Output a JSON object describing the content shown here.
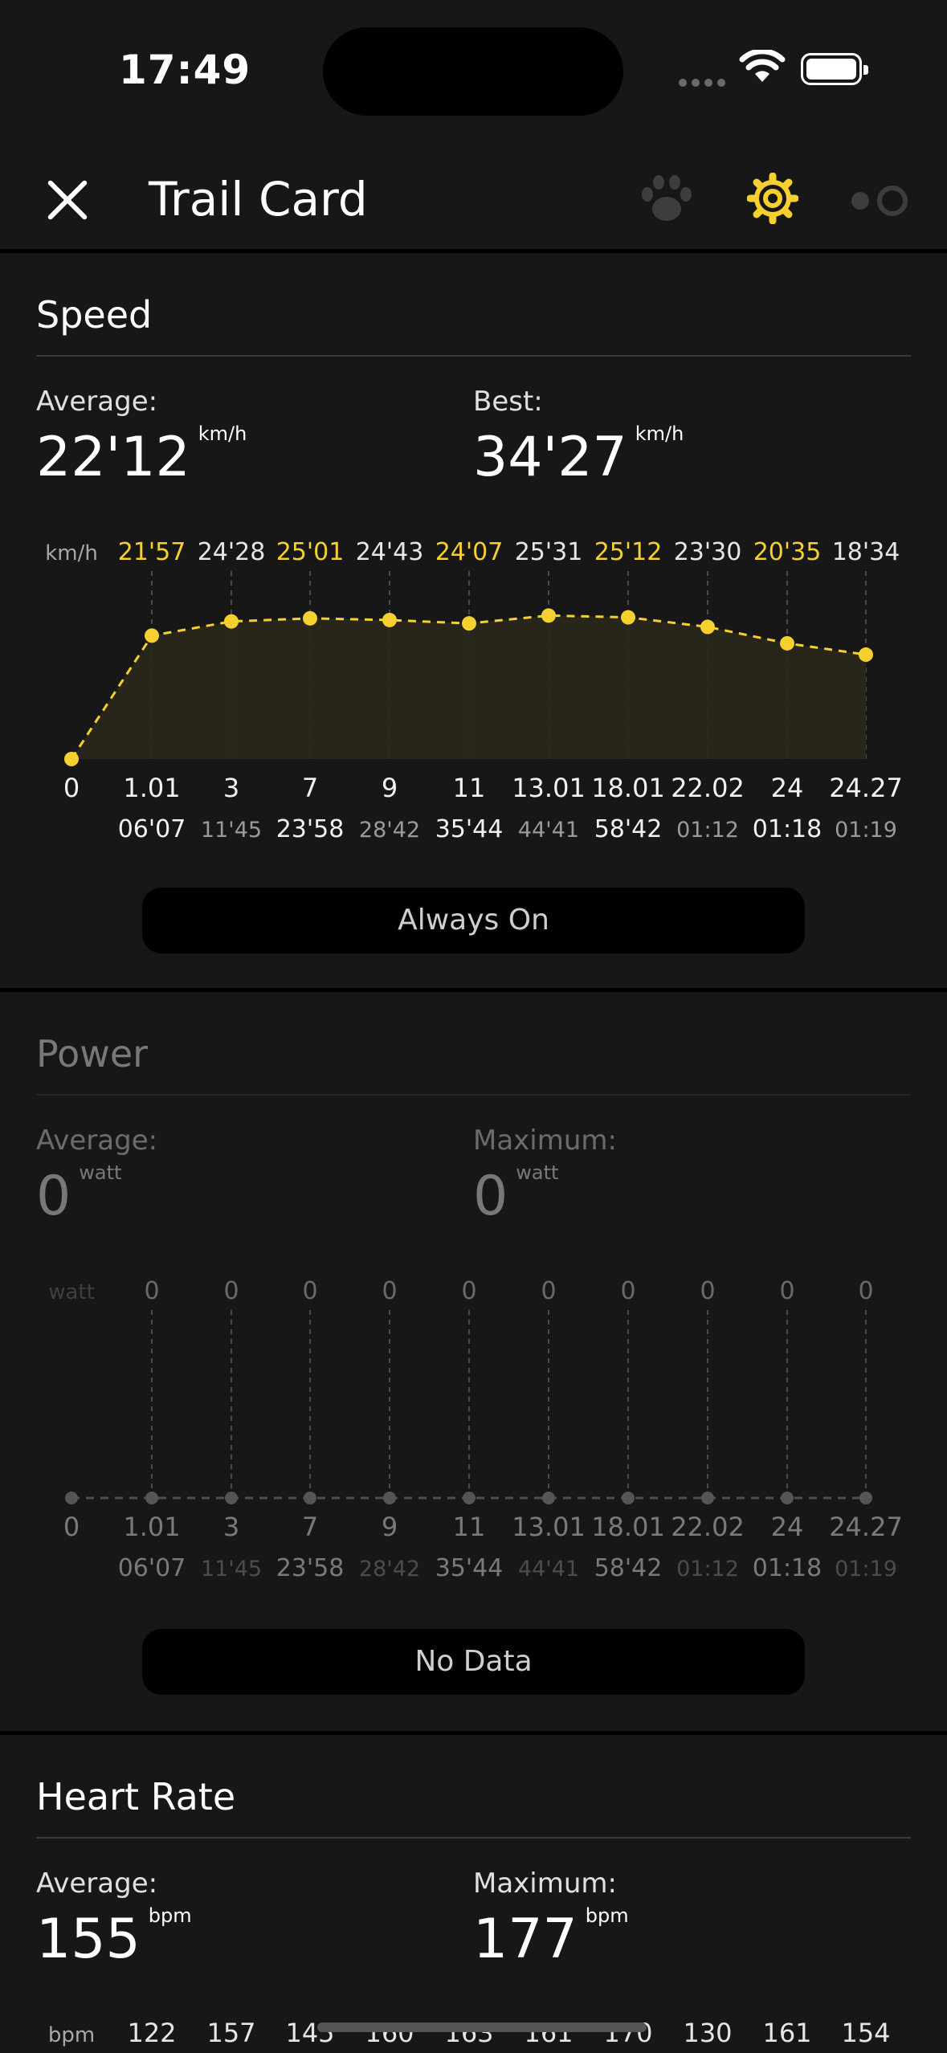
{
  "status_bar": {
    "time": "17:49"
  },
  "header": {
    "title": "Trail Card"
  },
  "colors": {
    "accent": "#f5d02e",
    "background": "#171717",
    "inactive_icon": "#3d3d3d"
  },
  "icons": [
    "close-icon",
    "paw-icon",
    "gear-icon",
    "toggle-icon",
    "wifi-icon",
    "battery-icon"
  ],
  "speed": {
    "title": "Speed",
    "average_label": "Average:",
    "average_value": "22'12",
    "unit": "km/h",
    "best_label": "Best:",
    "best_value": "34'27",
    "axis_unit": "km/h",
    "button": "Always On"
  },
  "power": {
    "title": "Power",
    "average_label": "Average:",
    "average_value": "0",
    "unit": "watt",
    "max_label": "Maximum:",
    "max_value": "0",
    "axis_unit": "watt",
    "button": "No Data"
  },
  "heart_rate": {
    "title": "Heart Rate",
    "average_label": "Average:",
    "average_value": "155",
    "unit": "bpm",
    "max_label": "Maximum:",
    "max_value": "177",
    "axis_unit": "bpm"
  },
  "chart_data": [
    {
      "type": "line",
      "name": "speed",
      "x_distance": [
        "0",
        "1.01",
        "3",
        "7",
        "9",
        "11",
        "13.01",
        "18.01",
        "22.02",
        "24",
        "24.27"
      ],
      "x_time": [
        "",
        "06'07",
        "11'45",
        "23'58",
        "28'42",
        "35'44",
        "44'41",
        "58'42",
        "01:12",
        "01:18",
        "01:19"
      ],
      "segment_labels": [
        "21'57",
        "24'28",
        "25'01",
        "24'43",
        "24'07",
        "25'31",
        "25'12",
        "23'30",
        "20'35",
        "18'34"
      ],
      "highlighted_labels": [
        0,
        2,
        4,
        6,
        8
      ],
      "values": [
        0,
        21.95,
        24.47,
        25.02,
        24.72,
        24.12,
        25.52,
        25.2,
        23.5,
        20.58,
        18.57
      ],
      "ylim": [
        0,
        30
      ]
    },
    {
      "type": "line",
      "name": "power",
      "x_distance": [
        "0",
        "1.01",
        "3",
        "7",
        "9",
        "11",
        "13.01",
        "18.01",
        "22.02",
        "24",
        "24.27"
      ],
      "x_time": [
        "",
        "06'07",
        "11'45",
        "23'58",
        "28'42",
        "35'44",
        "44'41",
        "58'42",
        "01:12",
        "01:18",
        "01:19"
      ],
      "segment_labels": [
        "0",
        "0",
        "0",
        "0",
        "0",
        "0",
        "0",
        "0",
        "0",
        "0"
      ],
      "values": [
        0,
        0,
        0,
        0,
        0,
        0,
        0,
        0,
        0,
        0,
        0
      ]
    },
    {
      "type": "line",
      "name": "heart_rate",
      "segment_labels": [
        "122",
        "157",
        "145",
        "160",
        "163",
        "161",
        "170",
        "130",
        "161",
        "154"
      ]
    }
  ]
}
